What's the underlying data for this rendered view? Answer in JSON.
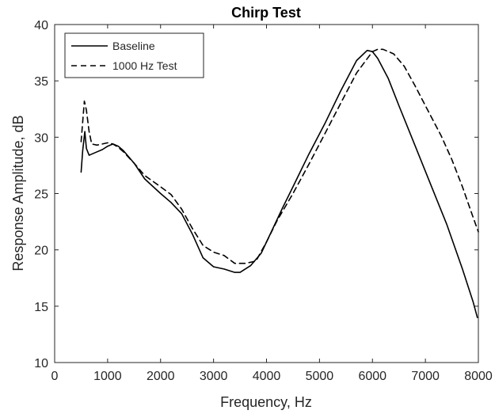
{
  "chart_data": {
    "type": "line",
    "title": "Chirp Test",
    "xlabel": "Frequency, Hz",
    "ylabel": "Response Amplitude, dB",
    "xlim": [
      0,
      8000
    ],
    "ylim": [
      10,
      40
    ],
    "xticks": [
      0,
      1000,
      2000,
      3000,
      4000,
      5000,
      6000,
      7000,
      8000
    ],
    "yticks": [
      10,
      15,
      20,
      25,
      30,
      35,
      40
    ],
    "grid": false,
    "legend_position": "top-left",
    "series": [
      {
        "name": "Baseline",
        "style": "solid",
        "color": "#000000",
        "x": [
          500,
          530,
          570,
          600,
          650,
          700,
          800,
          900,
          1000,
          1100,
          1200,
          1300,
          1500,
          1700,
          2000,
          2200,
          2400,
          2600,
          2800,
          3000,
          3200,
          3400,
          3500,
          3700,
          3900,
          4100,
          4300,
          4500,
          4800,
          5100,
          5400,
          5700,
          5900,
          6000,
          6100,
          6300,
          6500,
          6800,
          7100,
          7400,
          7700,
          7900,
          7980
        ],
        "y": [
          26.9,
          28.8,
          30.5,
          29.0,
          28.4,
          28.5,
          28.7,
          28.9,
          29.2,
          29.4,
          29.2,
          28.8,
          27.7,
          26.3,
          25.0,
          24.2,
          23.2,
          21.4,
          19.3,
          18.5,
          18.3,
          18.0,
          18.0,
          18.6,
          19.7,
          21.7,
          23.7,
          25.6,
          28.5,
          31.2,
          34.1,
          36.8,
          37.7,
          37.6,
          37.0,
          35.2,
          32.8,
          29.3,
          25.8,
          22.3,
          18.3,
          15.4,
          14.0
        ]
      },
      {
        "name": "1000 Hz Test",
        "style": "dashed",
        "color": "#000000",
        "x": [
          500,
          560,
          600,
          650,
          700,
          800,
          900,
          1000,
          1100,
          1200,
          1300,
          1500,
          1700,
          2000,
          2200,
          2400,
          2600,
          2800,
          3000,
          3200,
          3400,
          3600,
          3800,
          4000,
          4200,
          4500,
          4800,
          5100,
          5400,
          5700,
          6000,
          6100,
          6200,
          6400,
          6600,
          6800,
          7000,
          7300,
          7500,
          7700,
          7900,
          8000
        ],
        "y": [
          29.6,
          33.2,
          32.4,
          30.5,
          29.4,
          29.3,
          29.4,
          29.5,
          29.4,
          29.1,
          28.7,
          27.7,
          26.6,
          25.6,
          24.9,
          23.6,
          21.9,
          20.4,
          19.8,
          19.5,
          18.8,
          18.8,
          19.0,
          20.7,
          22.6,
          25.0,
          27.6,
          30.3,
          33.0,
          35.7,
          37.6,
          37.8,
          37.8,
          37.4,
          36.3,
          34.6,
          32.8,
          30.1,
          28.0,
          25.6,
          22.9,
          21.6
        ]
      }
    ]
  }
}
